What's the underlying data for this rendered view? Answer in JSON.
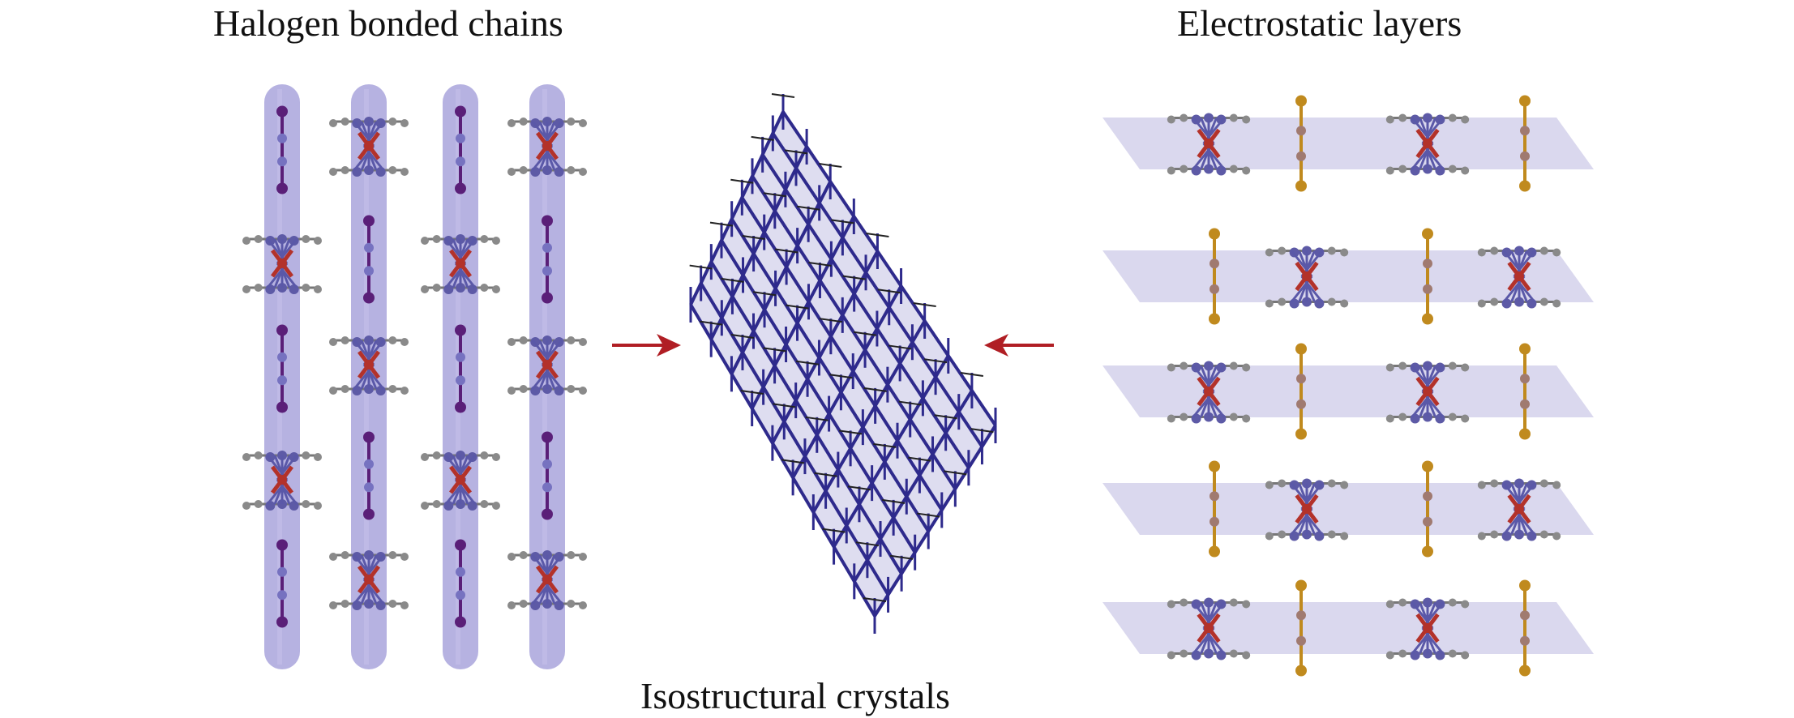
{
  "labels": {
    "left_title": "Halogen bonded chains",
    "right_title": "Electrostatic layers",
    "bottom_title": "Isostructural crystals"
  },
  "colors": {
    "tube": "#a9a4dc",
    "layer_plane": "#d6d4ec",
    "lattice": "#2e2a8c",
    "iodine_left": "#5a1f78",
    "iodine_right": "#c08a1e",
    "iron": "#b3322a",
    "carbon": "#8a8a8a",
    "bond_blue": "#5a58a8",
    "arrow": "#b01e24"
  },
  "left_panel": {
    "chains": [
      [
        "iodine",
        "ferrocene",
        "iodine",
        "ferrocene",
        "iodine"
      ],
      [
        "ferrocene",
        "iodine",
        "ferrocene",
        "iodine",
        "ferrocene"
      ],
      [
        "iodine",
        "ferrocene",
        "iodine",
        "ferrocene",
        "iodine"
      ],
      [
        "ferrocene",
        "iodine",
        "ferrocene",
        "iodine",
        "ferrocene"
      ]
    ]
  },
  "right_panel": {
    "layers": [
      [
        "ferrocene",
        "iodine",
        "ferrocene",
        "iodine"
      ],
      [
        "iodine",
        "ferrocene",
        "iodine",
        "ferrocene"
      ],
      [
        "ferrocene",
        "iodine",
        "ferrocene",
        "iodine"
      ],
      [
        "iodine",
        "ferrocene",
        "iodine",
        "ferrocene"
      ],
      [
        "ferrocene",
        "iodine",
        "ferrocene",
        "iodine"
      ]
    ]
  },
  "arrows": [
    "arrow-right",
    "arrow-left"
  ]
}
